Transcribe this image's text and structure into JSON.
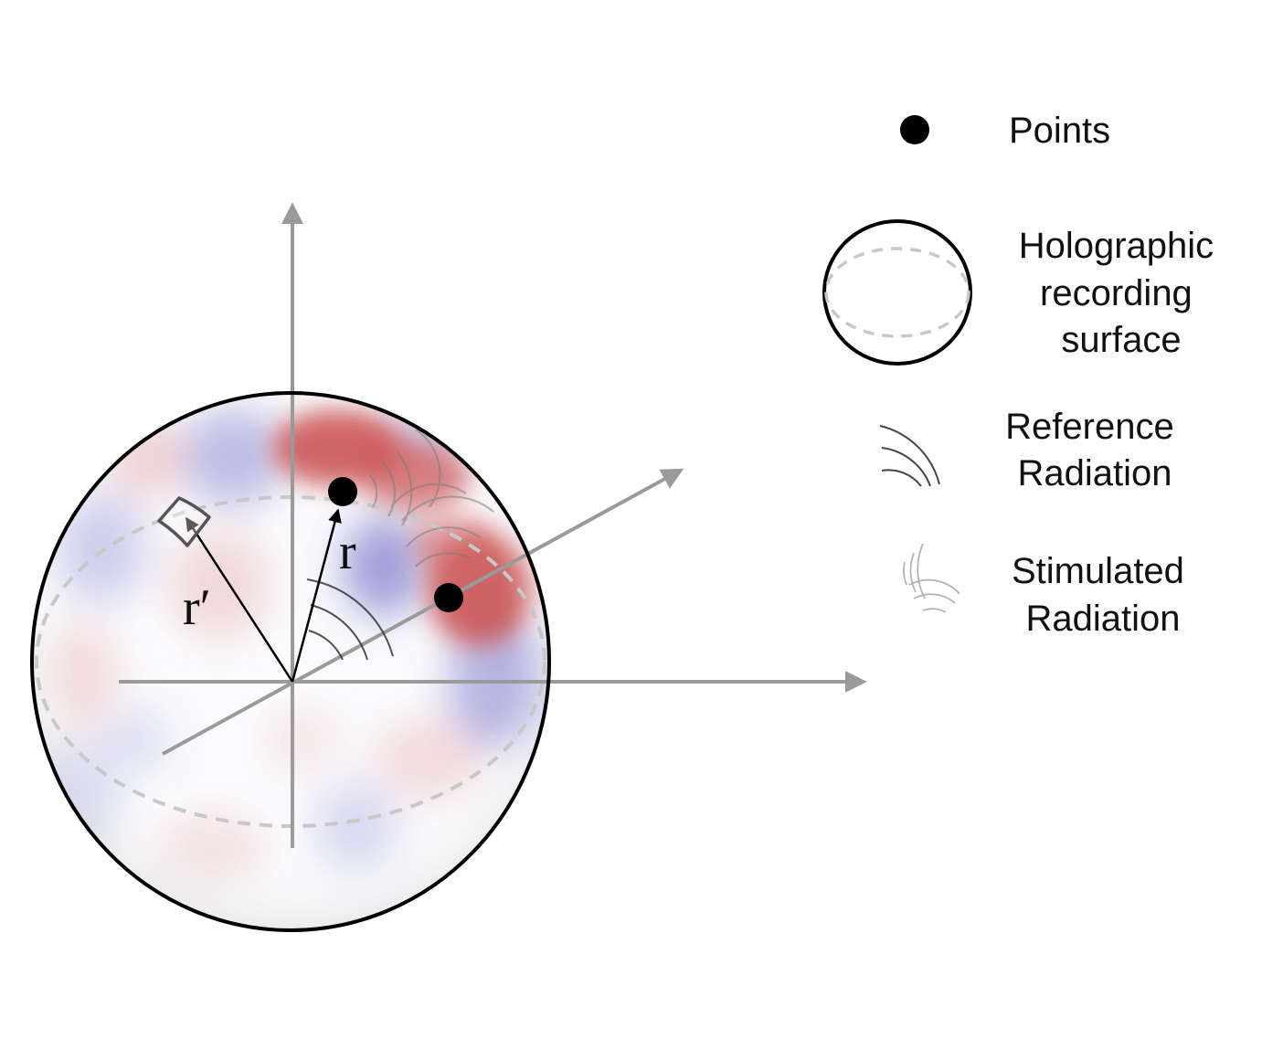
{
  "diagram": {
    "labels": {
      "r": "r",
      "r_prime": "r′"
    },
    "legend": {
      "points": {
        "lines": [
          "Points"
        ],
        "icon": "filled-dot-icon"
      },
      "surface": {
        "lines": [
          "Holographic",
          "recording",
          "surface"
        ],
        "icon": "sphere-outline-icon"
      },
      "reference": {
        "lines": [
          "Reference",
          "Radiation"
        ],
        "icon": "arc-waves-icon"
      },
      "stimulated": {
        "lines": [
          "Stimulated",
          "Radiation"
        ],
        "icon": "crossed-arc-waves-icon"
      }
    },
    "colors": {
      "axis": "#9a9a9a",
      "outline": "#000000",
      "equator_dashes": "#c8c8c8",
      "red_field": "#c84b4b",
      "blue_field": "#7878c8"
    }
  }
}
